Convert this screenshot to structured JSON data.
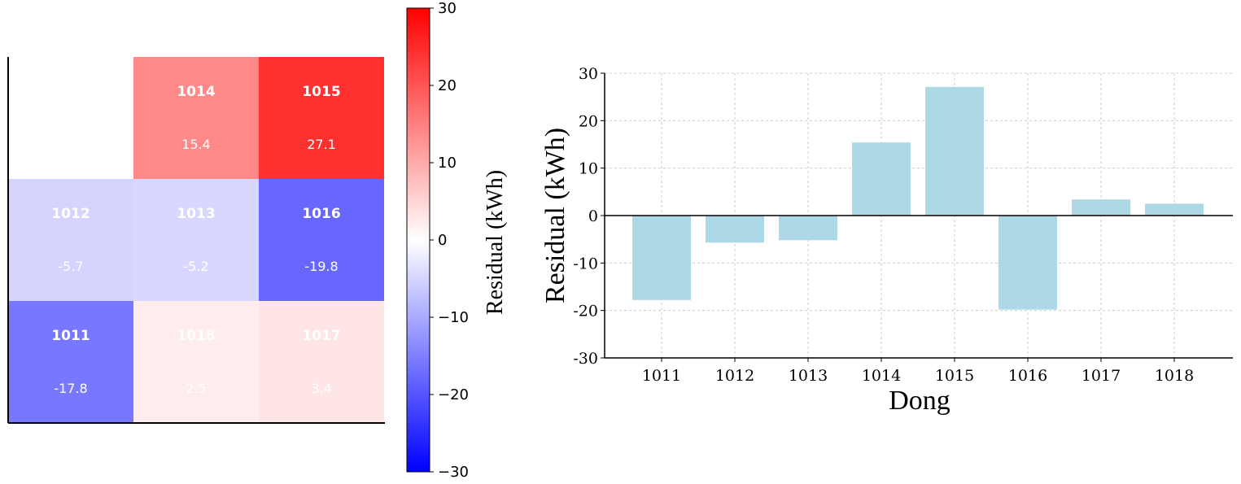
{
  "chart_data": [
    {
      "type": "heatmap",
      "unit": "Residual (kWh)",
      "cells": [
        {
          "id": "1014",
          "value": 15.4,
          "row": 0,
          "col": 1
        },
        {
          "id": "1015",
          "value": 27.1,
          "row": 0,
          "col": 2
        },
        {
          "id": "1012",
          "value": -5.7,
          "row": 1,
          "col": 0
        },
        {
          "id": "1013",
          "value": -5.2,
          "row": 1,
          "col": 1
        },
        {
          "id": "1016",
          "value": -19.8,
          "row": 1,
          "col": 2
        },
        {
          "id": "1011",
          "value": -17.8,
          "row": 2,
          "col": 0
        },
        {
          "id": "1018",
          "value": 2.5,
          "row": 2,
          "col": 1
        },
        {
          "id": "1017",
          "value": 3.4,
          "row": 2,
          "col": 2
        }
      ],
      "grid_rows": 3,
      "grid_cols": 3,
      "colorbar": {
        "label": "Residual (kWh)",
        "range": [
          -30,
          30
        ],
        "ticks": [
          "30",
          "20",
          "10",
          "0",
          "−10",
          "−20",
          "−30"
        ],
        "tick_values": [
          30,
          20,
          10,
          0,
          -10,
          -20,
          -30
        ],
        "colors": {
          "high": "#ff0000",
          "mid": "#ffffff",
          "low": "#0000ff"
        }
      }
    },
    {
      "type": "bar",
      "categories": [
        "1011",
        "1012",
        "1013",
        "1014",
        "1015",
        "1016",
        "1017",
        "1018"
      ],
      "values": [
        -17.8,
        -5.7,
        -5.2,
        15.4,
        27.1,
        -19.8,
        3.4,
        2.5
      ],
      "xlabel": "Dong",
      "ylabel": "Residual (kWh)",
      "ylim": [
        -30,
        30
      ],
      "yticks": [
        "30",
        "20",
        "10",
        "0",
        "-10",
        "-20",
        "-30"
      ],
      "ytick_values": [
        30,
        20,
        10,
        0,
        -10,
        -20,
        -30
      ],
      "grid": true,
      "bar_color": "#add8e6"
    }
  ]
}
